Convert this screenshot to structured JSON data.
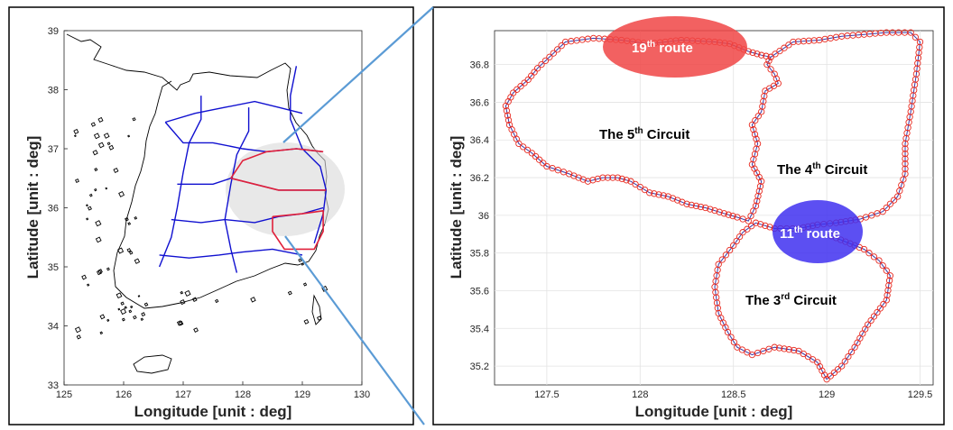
{
  "chart_data": [
    {
      "type": "line",
      "title": "",
      "xlabel": "Longitude [unit : deg]",
      "ylabel": "Latitude [unit : deg]",
      "xlim": [
        125,
        130
      ],
      "ylim": [
        33,
        39
      ],
      "x_ticks": [
        "125",
        "126",
        "127",
        "128",
        "129",
        "130"
      ],
      "y_ticks": [
        "33",
        "34",
        "35",
        "36",
        "37",
        "38",
        "39"
      ],
      "grid": false,
      "colors": {
        "network": "#1010d0",
        "highlight": "#e0203a",
        "coastline": "#000000",
        "overlay": "#e6e6e6"
      },
      "series": [
        {
          "values": [
            [
              126.7,
              37.45
            ],
            [
              127.2,
              37.6
            ],
            [
              127.7,
              37.7
            ],
            [
              128.2,
              37.8
            ],
            [
              128.6,
              37.7
            ],
            [
              129.0,
              37.6
            ]
          ]
        },
        {
          "values": [
            [
              126.7,
              37.45
            ],
            [
              127.0,
              37.1
            ],
            [
              127.5,
              37.1
            ],
            [
              128.0,
              37.0
            ],
            [
              128.4,
              36.95
            ],
            [
              128.9,
              37.0
            ],
            [
              129.35,
              36.95
            ]
          ]
        },
        {
          "values": [
            [
              126.9,
              36.4
            ],
            [
              127.5,
              36.4
            ],
            [
              127.8,
              36.5
            ],
            [
              128.2,
              36.4
            ],
            [
              128.6,
              36.3
            ],
            [
              129.0,
              36.3
            ],
            [
              129.4,
              36.3
            ]
          ]
        },
        {
          "values": [
            [
              126.8,
              35.8
            ],
            [
              127.3,
              35.75
            ],
            [
              127.7,
              35.8
            ],
            [
              128.2,
              35.75
            ],
            [
              128.6,
              35.85
            ],
            [
              129.0,
              35.9
            ],
            [
              129.35,
              36.0
            ]
          ]
        },
        {
          "values": [
            [
              126.6,
              35.2
            ],
            [
              127.1,
              35.15
            ],
            [
              127.6,
              35.2
            ],
            [
              128.0,
              35.25
            ],
            [
              128.5,
              35.3
            ],
            [
              129.0,
              35.2
            ]
          ]
        },
        {
          "values": [
            [
              128.9,
              38.4
            ],
            [
              128.8,
              37.9
            ],
            [
              128.8,
              37.5
            ],
            [
              129.0,
              37.0
            ],
            [
              129.3,
              36.7
            ],
            [
              129.4,
              36.3
            ],
            [
              129.35,
              35.9
            ],
            [
              129.2,
              35.4
            ]
          ]
        },
        {
          "values": [
            [
              127.3,
              37.9
            ],
            [
              127.3,
              37.5
            ],
            [
              127.1,
              37.1
            ],
            [
              127.0,
              36.6
            ],
            [
              126.9,
              36.0
            ],
            [
              126.8,
              35.5
            ],
            [
              126.6,
              35.0
            ]
          ]
        },
        {
          "values": [
            [
              128.1,
              37.7
            ],
            [
              128.1,
              37.3
            ],
            [
              127.9,
              36.9
            ],
            [
              127.8,
              36.4
            ],
            [
              127.7,
              35.8
            ],
            [
              127.8,
              35.3
            ],
            [
              127.9,
              34.9
            ]
          ]
        }
      ],
      "highlight_series": [
        {
          "values": [
            [
              127.8,
              36.5
            ],
            [
              128.2,
              36.4
            ],
            [
              128.6,
              36.3
            ],
            [
              129.0,
              36.3
            ],
            [
              129.4,
              36.3
            ]
          ]
        },
        {
          "values": [
            [
              127.8,
              36.5
            ],
            [
              128.0,
              36.8
            ],
            [
              128.4,
              36.95
            ],
            [
              128.9,
              37.0
            ],
            [
              129.35,
              36.95
            ]
          ]
        },
        {
          "values": [
            [
              128.5,
              35.85
            ],
            [
              129.0,
              35.9
            ],
            [
              129.35,
              35.95
            ],
            [
              129.35,
              35.6
            ],
            [
              129.2,
              35.3
            ],
            [
              128.7,
              35.3
            ],
            [
              128.5,
              35.6
            ],
            [
              128.5,
              35.85
            ]
          ]
        }
      ]
    },
    {
      "type": "line",
      "title": "",
      "xlabel": "Longitude [unit : deg]",
      "ylabel": "Latitude [unit : deg]",
      "xlim": [
        127.22,
        129.57
      ],
      "ylim": [
        35.1,
        36.98
      ],
      "x_ticks": [
        "127.5",
        "128",
        "128.5",
        "129",
        "129.5"
      ],
      "y_ticks": [
        "35.2",
        "35.4",
        "35.6",
        "35.8",
        "36",
        "36.2",
        "36.4",
        "36.6",
        "36.8"
      ],
      "grid": true,
      "colors": {
        "marker": "#e8281e",
        "line": "#3a3aa8"
      },
      "series": [
        {
          "values": [
            [
              127.45,
              36.78
            ],
            [
              127.6,
              36.92
            ],
            [
              127.75,
              36.94
            ],
            [
              127.9,
              36.93
            ],
            [
              128.05,
              36.91
            ],
            [
              128.22,
              36.93
            ],
            [
              128.4,
              36.92
            ],
            [
              128.48,
              36.91
            ],
            [
              128.58,
              36.87
            ],
            [
              128.65,
              36.85
            ],
            [
              128.7,
              36.84
            ],
            [
              128.68,
              36.8
            ],
            [
              128.72,
              36.75
            ],
            [
              128.74,
              36.7
            ],
            [
              128.67,
              36.66
            ],
            [
              128.65,
              36.55
            ],
            [
              128.6,
              36.48
            ],
            [
              128.63,
              36.38
            ],
            [
              128.6,
              36.27
            ],
            [
              128.65,
              36.18
            ],
            [
              128.62,
              36.05
            ],
            [
              128.58,
              35.97
            ],
            [
              128.52,
              35.99
            ],
            [
              128.45,
              36.01
            ],
            [
              128.35,
              36.04
            ],
            [
              128.25,
              36.06
            ],
            [
              128.15,
              36.1
            ],
            [
              128.05,
              36.12
            ],
            [
              127.95,
              36.18
            ],
            [
              127.88,
              36.2
            ],
            [
              127.8,
              36.2
            ],
            [
              127.72,
              36.18
            ],
            [
              127.62,
              36.22
            ],
            [
              127.5,
              36.26
            ],
            [
              127.42,
              36.33
            ],
            [
              127.35,
              36.38
            ],
            [
              127.3,
              36.48
            ],
            [
              127.28,
              36.58
            ],
            [
              127.32,
              36.65
            ],
            [
              127.4,
              36.72
            ],
            [
              127.45,
              36.78
            ]
          ]
        },
        {
          "values": [
            [
              128.7,
              36.84
            ],
            [
              128.82,
              36.92
            ],
            [
              128.96,
              36.93
            ],
            [
              129.08,
              36.95
            ],
            [
              129.2,
              36.96
            ],
            [
              129.32,
              36.97
            ],
            [
              129.45,
              36.97
            ],
            [
              129.5,
              36.92
            ],
            [
              129.48,
              36.75
            ],
            [
              129.45,
              36.55
            ],
            [
              129.42,
              36.38
            ],
            [
              129.42,
              36.22
            ],
            [
              129.38,
              36.1
            ],
            [
              129.3,
              36.02
            ],
            [
              129.18,
              35.98
            ],
            [
              129.05,
              35.96
            ],
            [
              128.95,
              35.95
            ],
            [
              128.85,
              35.93
            ],
            [
              128.72,
              35.93
            ],
            [
              128.62,
              35.96
            ]
          ]
        },
        {
          "values": [
            [
              128.62,
              35.96
            ],
            [
              128.55,
              35.91
            ],
            [
              128.5,
              35.84
            ],
            [
              128.42,
              35.74
            ],
            [
              128.4,
              35.62
            ],
            [
              128.42,
              35.48
            ],
            [
              128.47,
              35.38
            ],
            [
              128.52,
              35.3
            ],
            [
              128.6,
              35.26
            ],
            [
              128.72,
              35.3
            ],
            [
              128.85,
              35.28
            ],
            [
              128.95,
              35.22
            ],
            [
              129.0,
              35.13
            ],
            [
              129.08,
              35.2
            ],
            [
              129.15,
              35.3
            ],
            [
              129.22,
              35.42
            ],
            [
              129.32,
              35.55
            ],
            [
              129.34,
              35.68
            ],
            [
              129.28,
              35.76
            ],
            [
              129.2,
              35.82
            ],
            [
              129.1,
              35.86
            ],
            [
              129.0,
              35.9
            ]
          ]
        }
      ]
    }
  ],
  "annotations": {
    "route19": {
      "main": "19",
      "sup": "th",
      "rest": " route",
      "color": "#f04545"
    },
    "route11": {
      "main": "11",
      "sup": "th",
      "rest": " route",
      "color": "#4030f0"
    },
    "circuit5": {
      "main": "The 5",
      "sup": "th",
      "rest": " Circuit"
    },
    "circuit4": {
      "main": "The 4",
      "sup": "th",
      "rest": " Circuit"
    },
    "circuit3": {
      "main": "The 3",
      "sup": "rd",
      "rest": " Circuit"
    }
  }
}
